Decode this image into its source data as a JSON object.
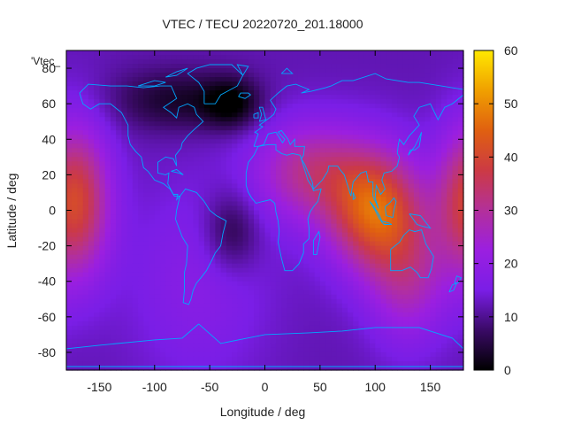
{
  "chart_data": {
    "type": "heatmap",
    "title": "VTEC / TECU 20220720_201.18000",
    "xlabel": "Longitude / deg",
    "ylabel": "Latitude / deg",
    "key_label": "'Vtec_",
    "xlim": [
      -180,
      180
    ],
    "ylim": [
      -90,
      90
    ],
    "xticks": [
      -150,
      -100,
      -50,
      0,
      50,
      100,
      150
    ],
    "yticks": [
      -80,
      -60,
      -40,
      -20,
      0,
      20,
      40,
      60,
      80
    ],
    "zlim": [
      0,
      60
    ],
    "cbticks": [
      0,
      10,
      20,
      30,
      40,
      50,
      60
    ],
    "grid": false,
    "colormap": [
      "#000000",
      "#3a0a66",
      "#7a1ee6",
      "#9b1fe0",
      "#b3309a",
      "#cc3a44",
      "#e06010",
      "#f0a000",
      "#ffe800"
    ],
    "grid_resolution": {
      "dlon": 5,
      "dlat": 2.5
    },
    "background_vtec": 12,
    "features": [
      {
        "lon": -172,
        "lat": 5,
        "slon": 22,
        "slat": 30,
        "amp": 28
      },
      {
        "lon": 100,
        "lat": 0,
        "slon": 30,
        "slat": 24,
        "amp": 32
      },
      {
        "lon": 40,
        "lat": 22,
        "slon": 35,
        "slat": 20,
        "amp": 18
      },
      {
        "lon": 130,
        "lat": -40,
        "slon": 25,
        "slat": 25,
        "amp": 14
      },
      {
        "lon": -60,
        "lat": -40,
        "slon": 45,
        "slat": 40,
        "amp": 6
      },
      {
        "lon": -80,
        "lat": 62,
        "slon": 40,
        "slat": 12,
        "amp": -9
      },
      {
        "lon": -30,
        "lat": 60,
        "slon": 18,
        "slat": 10,
        "amp": -11
      },
      {
        "lon": -30,
        "lat": -12,
        "slon": 18,
        "slat": 16,
        "amp": -9
      }
    ],
    "coastlines": [
      [
        [
          -168,
          66
        ],
        [
          -160,
          71
        ],
        [
          -140,
          70
        ],
        [
          -125,
          70
        ],
        [
          -110,
          69
        ],
        [
          -95,
          70
        ],
        [
          -85,
          70
        ],
        [
          -80,
          63
        ],
        [
          -92,
          58
        ],
        [
          -85,
          55
        ],
        [
          -80,
          52
        ],
        [
          -78,
          58
        ],
        [
          -70,
          60
        ],
        [
          -64,
          58
        ],
        [
          -62,
          54
        ],
        [
          -56,
          50
        ],
        [
          -65,
          45
        ],
        [
          -70,
          42
        ],
        [
          -75,
          38
        ],
        [
          -76,
          35
        ],
        [
          -81,
          31
        ],
        [
          -80,
          25
        ],
        [
          -83,
          29
        ],
        [
          -90,
          30
        ],
        [
          -97,
          27
        ],
        [
          -97,
          21
        ],
        [
          -90,
          20
        ],
        [
          -87,
          21
        ],
        [
          -88,
          15
        ],
        [
          -83,
          9
        ],
        [
          -79,
          9
        ],
        [
          -80,
          6
        ],
        [
          -77,
          8
        ],
        [
          -82,
          8
        ],
        [
          -86,
          12
        ],
        [
          -92,
          15
        ],
        [
          -100,
          17
        ],
        [
          -106,
          22
        ],
        [
          -110,
          24
        ],
        [
          -112,
          30
        ],
        [
          -117,
          33
        ],
        [
          -122,
          37
        ],
        [
          -124,
          42
        ],
        [
          -124,
          48
        ],
        [
          -130,
          55
        ],
        [
          -140,
          60
        ],
        [
          -150,
          60
        ],
        [
          -158,
          57
        ],
        [
          -165,
          60
        ],
        [
          -168,
          66
        ]
      ],
      [
        [
          -77,
          8
        ],
        [
          -72,
          12
        ],
        [
          -62,
          10
        ],
        [
          -55,
          5
        ],
        [
          -50,
          0
        ],
        [
          -44,
          -3
        ],
        [
          -35,
          -6
        ],
        [
          -38,
          -13
        ],
        [
          -40,
          -20
        ],
        [
          -45,
          -24
        ],
        [
          -48,
          -28
        ],
        [
          -53,
          -34
        ],
        [
          -58,
          -38
        ],
        [
          -62,
          -41
        ],
        [
          -65,
          -45
        ],
        [
          -67,
          -50
        ],
        [
          -69,
          -53
        ],
        [
          -74,
          -52
        ],
        [
          -73,
          -45
        ],
        [
          -73,
          -35
        ],
        [
          -71,
          -30
        ],
        [
          -70,
          -20
        ],
        [
          -75,
          -15
        ],
        [
          -81,
          -5
        ],
        [
          -80,
          0
        ],
        [
          -77,
          8
        ]
      ],
      [
        [
          -55,
          60
        ],
        [
          -45,
          60
        ],
        [
          -40,
          65
        ],
        [
          -25,
          70
        ],
        [
          -20,
          76
        ],
        [
          -30,
          82
        ],
        [
          -50,
          82
        ],
        [
          -62,
          80
        ],
        [
          -70,
          77
        ],
        [
          -60,
          72
        ],
        [
          -55,
          67
        ],
        [
          -55,
          60
        ]
      ],
      [
        [
          -10,
          36
        ],
        [
          -6,
          43
        ],
        [
          -9,
          44
        ],
        [
          -2,
          47
        ],
        [
          -5,
          48
        ],
        [
          2,
          51
        ],
        [
          8,
          54
        ],
        [
          10,
          57
        ],
        [
          5,
          62
        ],
        [
          12,
          66
        ],
        [
          20,
          70
        ],
        [
          28,
          71
        ],
        [
          40,
          68
        ],
        [
          33,
          66
        ],
        [
          42,
          67
        ],
        [
          55,
          69
        ],
        [
          60,
          70
        ],
        [
          70,
          73
        ],
        [
          80,
          73
        ],
        [
          100,
          77
        ],
        [
          110,
          74
        ],
        [
          130,
          72
        ],
        [
          140,
          72
        ],
        [
          160,
          70
        ],
        [
          180,
          68
        ],
        [
          180,
          65
        ],
        [
          170,
          60
        ],
        [
          163,
          58
        ],
        [
          157,
          51
        ],
        [
          150,
          60
        ],
        [
          140,
          58
        ],
        [
          135,
          53
        ],
        [
          140,
          48
        ],
        [
          131,
          42
        ],
        [
          128,
          39
        ],
        [
          126,
          37
        ],
        [
          122,
          40
        ],
        [
          121,
          37
        ],
        [
          120,
          32
        ],
        [
          122,
          30
        ],
        [
          120,
          25
        ],
        [
          115,
          22
        ],
        [
          108,
          21
        ],
        [
          106,
          17
        ],
        [
          109,
          12
        ],
        [
          105,
          9
        ],
        [
          101,
          14
        ],
        [
          100,
          7
        ],
        [
          103,
          1
        ],
        [
          98,
          8
        ],
        [
          98,
          16
        ],
        [
          94,
          16
        ],
        [
          92,
          22
        ],
        [
          87,
          21
        ],
        [
          80,
          16
        ],
        [
          78,
          8
        ],
        [
          72,
          20
        ],
        [
          68,
          23
        ],
        [
          66,
          25
        ],
        [
          58,
          25
        ],
        [
          57,
          22
        ],
        [
          52,
          17
        ],
        [
          44,
          12
        ],
        [
          43,
          16
        ],
        [
          36,
          26
        ],
        [
          33,
          29
        ],
        [
          35,
          31
        ],
        [
          36,
          36
        ],
        [
          27,
          36
        ],
        [
          27,
          40
        ],
        [
          23,
          37
        ],
        [
          21,
          40
        ],
        [
          15,
          45
        ],
        [
          12,
          44
        ],
        [
          18,
          40
        ],
        [
          16,
          38
        ],
        [
          10,
          44
        ],
        [
          3,
          43
        ],
        [
          -1,
          37
        ],
        [
          -6,
          36
        ],
        [
          -10,
          36
        ]
      ],
      [
        [
          -6,
          36
        ],
        [
          -10,
          31
        ],
        [
          -15,
          27
        ],
        [
          -17,
          21
        ],
        [
          -17,
          14
        ],
        [
          -15,
          10
        ],
        [
          -12,
          7
        ],
        [
          -8,
          4
        ],
        [
          -2,
          5
        ],
        [
          5,
          6
        ],
        [
          9,
          4
        ],
        [
          10,
          -1
        ],
        [
          12,
          -6
        ],
        [
          13,
          -12
        ],
        [
          12,
          -18
        ],
        [
          15,
          -27
        ],
        [
          18,
          -34
        ],
        [
          25,
          -34
        ],
        [
          31,
          -30
        ],
        [
          35,
          -24
        ],
        [
          35,
          -19
        ],
        [
          40,
          -16
        ],
        [
          40,
          -10
        ],
        [
          39,
          -5
        ],
        [
          41,
          -1
        ],
        [
          44,
          2
        ],
        [
          48,
          5
        ],
        [
          51,
          12
        ],
        [
          44,
          11
        ],
        [
          43,
          13
        ],
        [
          39,
          17
        ],
        [
          34,
          27
        ],
        [
          32,
          31
        ],
        [
          25,
          32
        ],
        [
          20,
          31
        ],
        [
          15,
          32
        ],
        [
          10,
          34
        ],
        [
          10,
          37
        ],
        [
          3,
          37
        ],
        [
          -6,
          36
        ]
      ],
      [
        [
          114,
          -22
        ],
        [
          114,
          -34
        ],
        [
          124,
          -34
        ],
        [
          132,
          -32
        ],
        [
          138,
          -35
        ],
        [
          141,
          -38
        ],
        [
          148,
          -38
        ],
        [
          151,
          -33
        ],
        [
          153,
          -26
        ],
        [
          146,
          -19
        ],
        [
          142,
          -11
        ],
        [
          136,
          -12
        ],
        [
          131,
          -11
        ],
        [
          126,
          -14
        ],
        [
          122,
          -18
        ],
        [
          114,
          -22
        ]
      ],
      [
        [
          -60,
          -64
        ],
        [
          -40,
          -75
        ],
        [
          0,
          -70
        ],
        [
          40,
          -69
        ],
        [
          70,
          -68
        ],
        [
          100,
          -66
        ],
        [
          140,
          -66
        ],
        [
          170,
          -72
        ],
        [
          180,
          -78
        ],
        [
          180,
          -88
        ],
        [
          -180,
          -88
        ],
        [
          -180,
          -78
        ],
        [
          -150,
          -76
        ],
        [
          -100,
          -73
        ],
        [
          -75,
          -72
        ],
        [
          -60,
          -64
        ]
      ],
      [
        [
          -5,
          50
        ],
        [
          -3,
          54
        ],
        [
          -5,
          58
        ],
        [
          -2,
          58
        ],
        [
          0,
          53
        ],
        [
          1,
          51
        ],
        [
          -5,
          50
        ]
      ],
      [
        [
          -10,
          52
        ],
        [
          -10,
          54
        ],
        [
          -6,
          55
        ],
        [
          -6,
          52
        ],
        [
          -10,
          52
        ]
      ],
      [
        [
          -24,
          64
        ],
        [
          -22,
          66
        ],
        [
          -15,
          66
        ],
        [
          -13,
          65
        ],
        [
          -18,
          63
        ],
        [
          -24,
          64
        ]
      ],
      [
        [
          130,
          31
        ],
        [
          132,
          34
        ],
        [
          136,
          34
        ],
        [
          140,
          36
        ],
        [
          141,
          40
        ],
        [
          142,
          44
        ],
        [
          140,
          41
        ],
        [
          136,
          36
        ],
        [
          130,
          31
        ]
      ],
      [
        [
          95,
          5
        ],
        [
          98,
          3
        ],
        [
          104,
          -3
        ],
        [
          106,
          -6
        ],
        [
          104,
          -5
        ],
        [
          100,
          0
        ],
        [
          95,
          5
        ]
      ],
      [
        [
          105,
          -6
        ],
        [
          112,
          -7
        ],
        [
          115,
          -8
        ],
        [
          108,
          -8
        ],
        [
          105,
          -6
        ]
      ],
      [
        [
          109,
          2
        ],
        [
          113,
          4
        ],
        [
          117,
          7
        ],
        [
          119,
          5
        ],
        [
          117,
          0
        ],
        [
          116,
          -4
        ],
        [
          110,
          -3
        ],
        [
          109,
          2
        ]
      ],
      [
        [
          131,
          -2
        ],
        [
          141,
          -3
        ],
        [
          150,
          -10
        ],
        [
          143,
          -9
        ],
        [
          138,
          -8
        ],
        [
          131,
          -2
        ]
      ],
      [
        [
          44,
          -25
        ],
        [
          47,
          -25
        ],
        [
          50,
          -15
        ],
        [
          49,
          -12
        ],
        [
          44,
          -17
        ],
        [
          44,
          -25
        ]
      ],
      [
        [
          80,
          6
        ],
        [
          82,
          7
        ],
        [
          80,
          10
        ],
        [
          80,
          6
        ]
      ],
      [
        [
          -85,
          22
        ],
        [
          -80,
          23
        ],
        [
          -74,
          20
        ],
        [
          -78,
          21
        ],
        [
          -85,
          22
        ]
      ],
      [
        [
          172,
          -41
        ],
        [
          174,
          -37
        ],
        [
          178,
          -38
        ],
        [
          175,
          -41
        ],
        [
          172,
          -41
        ]
      ],
      [
        [
          167,
          -46
        ],
        [
          171,
          -45
        ],
        [
          174,
          -41
        ],
        [
          170,
          -42
        ],
        [
          167,
          -46
        ]
      ],
      [
        [
          -115,
          70
        ],
        [
          -100,
          73
        ],
        [
          -90,
          72
        ],
        [
          -100,
          70
        ],
        [
          -115,
          70
        ]
      ],
      [
        [
          -90,
          75
        ],
        [
          -80,
          78
        ],
        [
          -70,
          80
        ],
        [
          -80,
          76
        ],
        [
          -90,
          75
        ]
      ],
      [
        [
          -20,
          76
        ],
        [
          -25,
          82
        ],
        [
          -15,
          81
        ],
        [
          -20,
          76
        ]
      ],
      [
        [
          15,
          77
        ],
        [
          20,
          80
        ],
        [
          25,
          77
        ],
        [
          15,
          77
        ]
      ],
      [
        [
          -180,
          -88
        ],
        [
          180,
          -88
        ]
      ]
    ]
  }
}
